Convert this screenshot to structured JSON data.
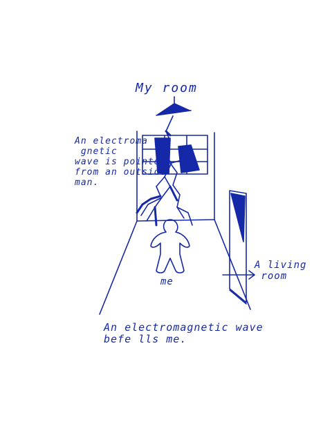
{
  "labels": {
    "title": "My room",
    "window_note": "An electroma\n gnetic\nwave is pointed\nfrom an outside\nman.",
    "me": "me",
    "living_room": "A living\n room",
    "befalls": "An electromagnetic wave\nbefe lls me."
  },
  "colors": {
    "ink": "#1428a8",
    "background": "#ffffff"
  }
}
